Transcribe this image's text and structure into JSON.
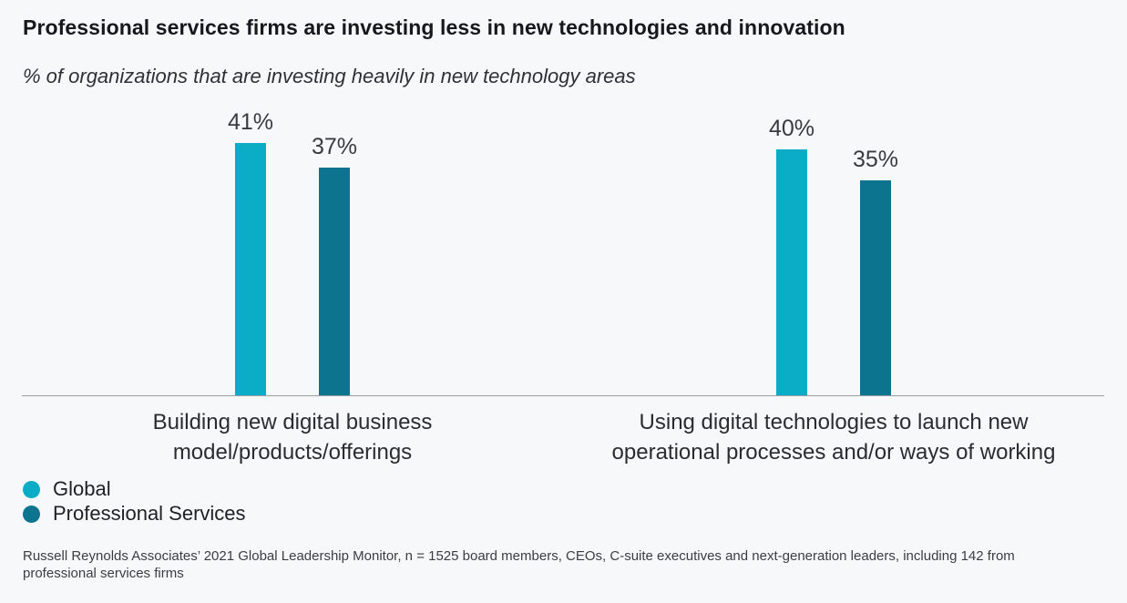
{
  "header": {
    "title": "Professional services firms are investing less in new technologies and innovation",
    "subtitle": "% of organizations that are investing heavily in new technology areas"
  },
  "chart_data": {
    "type": "bar",
    "categories": [
      "Building new digital business model/products/offerings",
      "Using digital technologies to launch new operational processes and/or ways of working"
    ],
    "category_label_lines": [
      [
        "Building new digital business",
        "model/products/offerings"
      ],
      [
        "Using digital technologies to launch new",
        "operational processes and/or ways of working"
      ]
    ],
    "series": [
      {
        "name": "Global",
        "color": "#0BACC6",
        "values": [
          41,
          40
        ]
      },
      {
        "name": "Professional Services",
        "color": "#0D7490",
        "values": [
          37,
          35
        ]
      }
    ],
    "value_suffix": "%",
    "ylim": [
      0,
      48
    ],
    "grid": false,
    "data_labels": true,
    "legend_position": "bottom-left",
    "axis_color": "#9CA0A5"
  },
  "footnote": "Russell Reynolds Associates’ 2021 Global Leadership Monitor, n = 1525 board members, CEOs, C-suite executives and next-generation leaders, including 142 from professional services firms"
}
